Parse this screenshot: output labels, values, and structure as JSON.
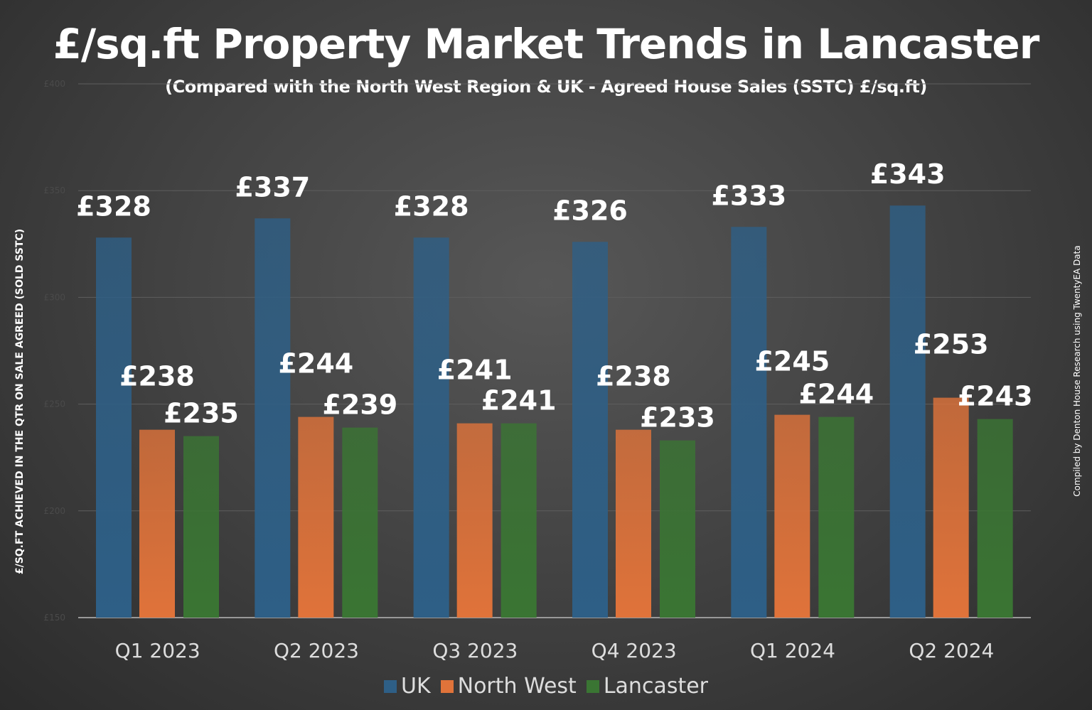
{
  "chart_data": {
    "type": "bar",
    "title": "£/sq.ft Property Market Trends in Lancaster",
    "subtitle": "(Compared with the North West Region & UK - Agreed House Sales (SSTC) £/sq.ft)",
    "ylabel": "£/SQ.FT ACHIEVED IN THE QTR ON SALE AGREED (SOLD SSTC)",
    "credit": "Compiled by Denton House Research using TwentyEA Data",
    "categories": [
      "Q1 2023",
      "Q2 2023",
      "Q3 2023",
      "Q4 2023",
      "Q1 2024",
      "Q2 2024"
    ],
    "series": [
      {
        "name": "UK",
        "values": [
          328,
          337,
          328,
          326,
          333,
          343
        ],
        "color": "#2e5f86"
      },
      {
        "name": "North West",
        "values": [
          238,
          244,
          241,
          238,
          245,
          253
        ],
        "color": "#e0733a"
      },
      {
        "name": "Lancaster",
        "values": [
          235,
          239,
          241,
          233,
          244,
          243
        ],
        "color": "#3a7533"
      }
    ],
    "ylim": [
      150,
      400
    ],
    "yticks": [
      "£150",
      "£200",
      "£250",
      "£300",
      "£350",
      "£400"
    ],
    "value_prefix": "£",
    "grid": true,
    "legend_position": "bottom"
  }
}
